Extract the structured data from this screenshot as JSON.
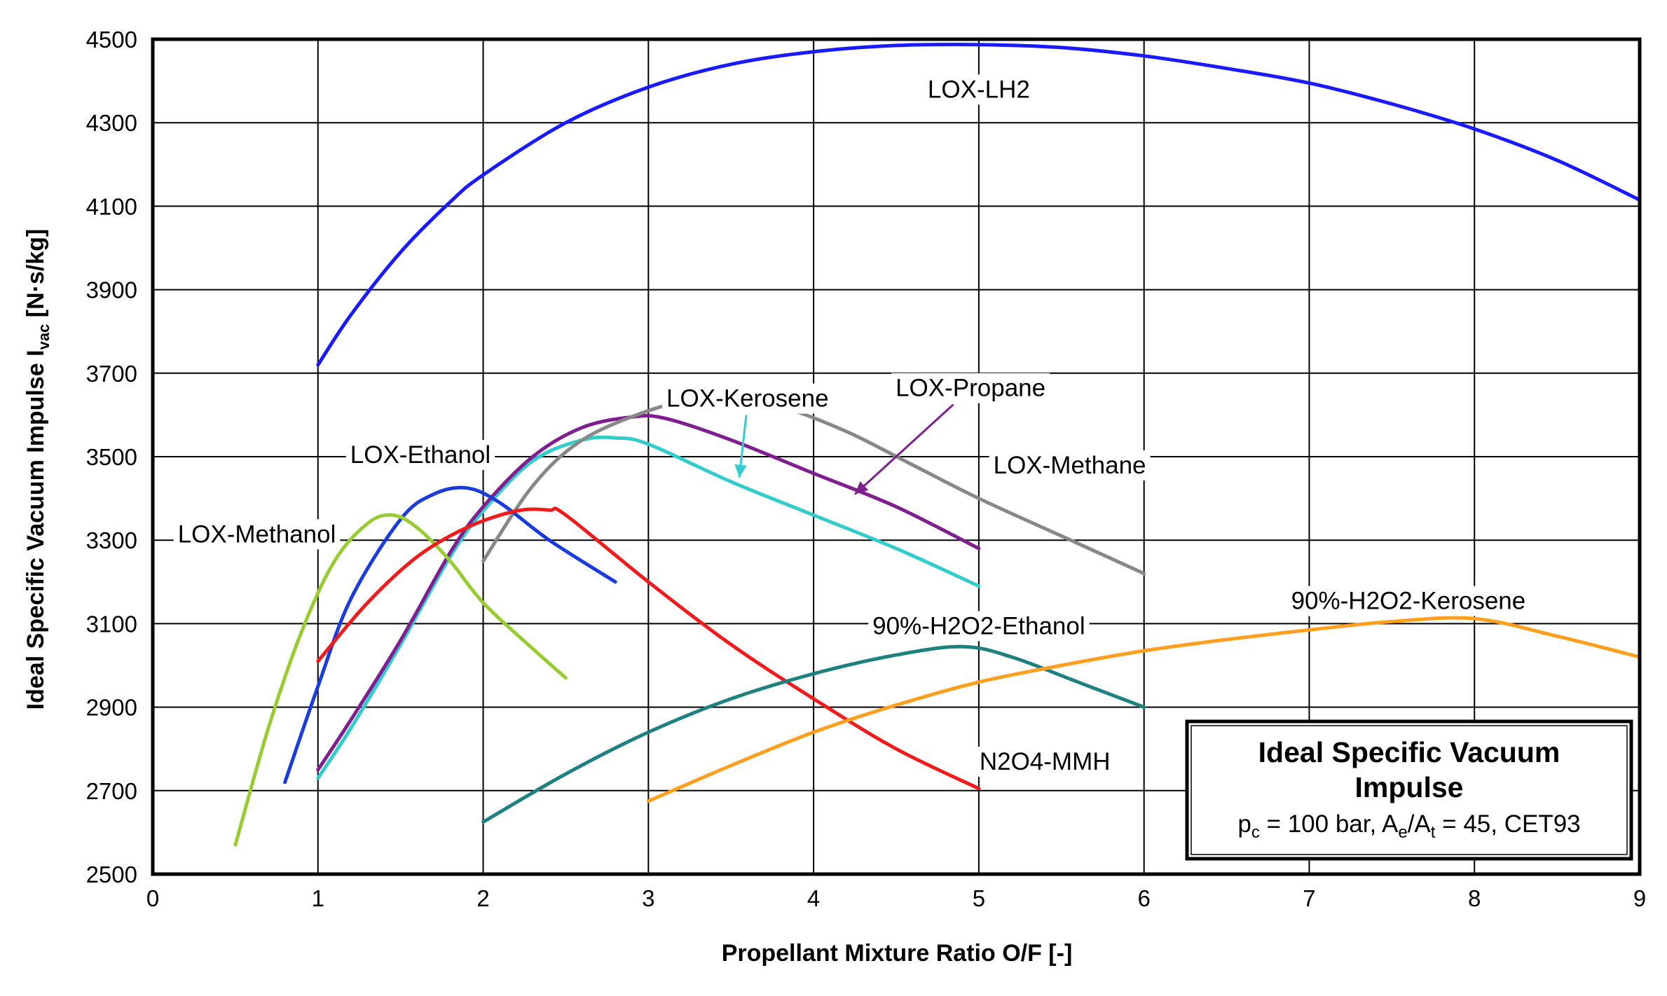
{
  "chart_data": {
    "type": "line",
    "title": "",
    "xlabel": "Propellant Mixture Ratio O/F  [-]",
    "ylabel": "Ideal Specific Vacuum Impulse I",
    "ylabel_sub": "vac",
    "ylabel_unit": "[N·s/kg]",
    "xlim": [
      0,
      9
    ],
    "ylim": [
      2500,
      4500
    ],
    "x_ticks": [
      0,
      1,
      2,
      3,
      4,
      5,
      6,
      7,
      8,
      9
    ],
    "y_ticks": [
      2500,
      2700,
      2900,
      3100,
      3300,
      3500,
      3700,
      3900,
      4100,
      4300,
      4500
    ],
    "grid": true,
    "legend_box": {
      "title_line1": "Ideal Specific Vacuum",
      "title_line2": "Impulse",
      "pc_sym": "p",
      "pc_sub": "c",
      "pc_text": " = 100 bar,  A",
      "ae_sub": "e",
      "slash": "/A",
      "at_sub": "t",
      "rest": " = 45,  CET93"
    },
    "series": [
      {
        "name": "LOX-LH2",
        "color": "#1a1aff",
        "x": [
          1,
          1.2,
          1.5,
          1.8,
          2,
          2.5,
          3,
          3.5,
          4,
          4.5,
          5,
          5.5,
          6,
          6.5,
          7,
          7.5,
          8,
          8.5,
          9
        ],
        "y": [
          3720,
          3840,
          3990,
          4110,
          4175,
          4300,
          4385,
          4440,
          4470,
          4485,
          4487,
          4480,
          4460,
          4430,
          4395,
          4345,
          4285,
          4210,
          4115
        ]
      },
      {
        "name": "LOX-Kerosene",
        "color": "#33cccc",
        "x": [
          1,
          1.2,
          1.5,
          1.8,
          2,
          2.3,
          2.6,
          2.8,
          3,
          3.5,
          4,
          4.5,
          5
        ],
        "y": [
          2730,
          2850,
          3050,
          3260,
          3370,
          3490,
          3540,
          3545,
          3530,
          3440,
          3360,
          3280,
          3190
        ]
      },
      {
        "name": "LOX-Propane",
        "color": "#7f1f8f",
        "x": [
          1,
          1.2,
          1.5,
          1.8,
          2,
          2.3,
          2.6,
          2.9,
          3.1,
          3.5,
          4,
          4.5,
          5
        ],
        "y": [
          2750,
          2870,
          3060,
          3270,
          3380,
          3500,
          3570,
          3595,
          3592,
          3540,
          3460,
          3380,
          3280
        ]
      },
      {
        "name": "LOX-Methane",
        "color": "#888888",
        "x": [
          2,
          2.3,
          2.6,
          3,
          3.3,
          3.5,
          3.8,
          4.2,
          4.6,
          5,
          5.5,
          6
        ],
        "y": [
          3250,
          3430,
          3540,
          3610,
          3638,
          3640,
          3620,
          3560,
          3480,
          3400,
          3310,
          3220
        ]
      },
      {
        "name": "LOX-Ethanol",
        "color": "#1a3cdd",
        "x": [
          0.8,
          1,
          1.2,
          1.5,
          1.7,
          1.9,
          2.1,
          2.4,
          2.8
        ],
        "y": [
          2720,
          2950,
          3160,
          3350,
          3410,
          3425,
          3390,
          3300,
          3200
        ]
      },
      {
        "name": "LOX-Methanol",
        "color": "#99cc33",
        "x": [
          0.5,
          0.7,
          0.9,
          1.1,
          1.3,
          1.45,
          1.6,
          1.8,
          2.0,
          2.3,
          2.5
        ],
        "y": [
          2570,
          2850,
          3080,
          3250,
          3340,
          3360,
          3330,
          3250,
          3150,
          3040,
          2970
        ]
      },
      {
        "name": "N2O4-MMH",
        "color": "#ee1c1c",
        "x": [
          1,
          1.3,
          1.6,
          1.9,
          2.2,
          2.4,
          2.5,
          3,
          3.5,
          4,
          4.5,
          5
        ],
        "y": [
          3010,
          3150,
          3260,
          3330,
          3370,
          3372,
          3360,
          3200,
          3050,
          2920,
          2800,
          2705
        ]
      },
      {
        "name": "90%-H2O2-Ethanol",
        "color": "#1f8080",
        "x": [
          2,
          2.5,
          3,
          3.5,
          4,
          4.5,
          4.9,
          5.2,
          5.6,
          6
        ],
        "y": [
          2625,
          2740,
          2840,
          2920,
          2980,
          3025,
          3045,
          3020,
          2960,
          2900
        ]
      },
      {
        "name": "90%-H2O2-Kerosene",
        "color": "#ff9f1f",
        "x": [
          3,
          3.5,
          4,
          4.5,
          5,
          5.5,
          6,
          6.5,
          7,
          7.5,
          8,
          8.5,
          9
        ],
        "y": [
          2675,
          2760,
          2840,
          2905,
          2960,
          3000,
          3035,
          3062,
          3085,
          3105,
          3112,
          3070,
          3020
        ]
      }
    ],
    "annotations": [
      {
        "series": "LOX-LH2",
        "text": "LOX-LH2",
        "at_x": 5.0,
        "at_y": 4380,
        "anchor": "middle"
      },
      {
        "series": "LOX-Kerosene",
        "text": "LOX-Kerosene",
        "at_x": 3.6,
        "at_y": 3640,
        "anchor": "middle",
        "arrow_to": [
          3.55,
          3450
        ]
      },
      {
        "series": "LOX-Propane",
        "text": "LOX-Propane",
        "at_x": 4.95,
        "at_y": 3665,
        "anchor": "middle",
        "arrow_to": [
          4.25,
          3410
        ]
      },
      {
        "series": "LOX-Methane",
        "text": "LOX-Methane",
        "at_x": 5.55,
        "at_y": 3480,
        "anchor": "middle"
      },
      {
        "series": "LOX-Ethanol",
        "text": "LOX-Ethanol",
        "at_x": 1.62,
        "at_y": 3505,
        "anchor": "middle"
      },
      {
        "series": "LOX-Methanol",
        "text": "LOX-Methanol",
        "at_x": 0.63,
        "at_y": 3315,
        "anchor": "middle"
      },
      {
        "series": "N2O4-MMH",
        "text": "N2O4-MMH",
        "at_x": 5.4,
        "at_y": 2770,
        "anchor": "middle"
      },
      {
        "series": "90%-H2O2-Ethanol",
        "text": "90%-H2O2-Ethanol",
        "at_x": 5.0,
        "at_y": 3095,
        "anchor": "middle"
      },
      {
        "series": "90%-H2O2-Kerosene",
        "text": "90%-H2O2-Kerosene",
        "at_x": 7.6,
        "at_y": 3155,
        "anchor": "middle"
      }
    ]
  }
}
